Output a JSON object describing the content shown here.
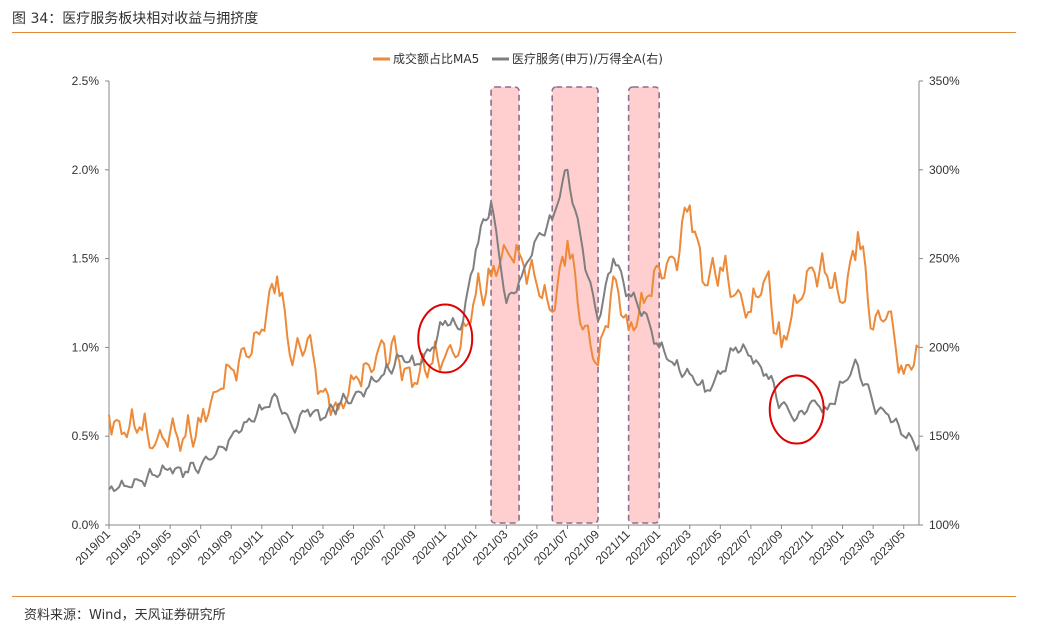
{
  "figure": {
    "title": "图 34：医疗服务板块相对收益与拥挤度",
    "source": "资料来源：Wind，天风证券研究所"
  },
  "colors": {
    "orange": "#ED8A3A",
    "gray": "#7F7F7F",
    "axis": "#888888",
    "rule": "#E08A3C",
    "highlight_fill": "#FFC7C7",
    "highlight_border": "#8C6E8E",
    "circle": "#E00000"
  },
  "chart_data": {
    "type": "line",
    "legend_position": "top-center",
    "grid": false,
    "x_ticks": [
      "2019/01",
      "2019/03",
      "2019/05",
      "2019/07",
      "2019/09",
      "2019/11",
      "2020/01",
      "2020/03",
      "2020/05",
      "2020/07",
      "2020/09",
      "2020/11",
      "2021/01",
      "2021/03",
      "2021/05",
      "2021/07",
      "2021/09",
      "2021/11",
      "2022/01",
      "2022/03",
      "2022/05",
      "2022/07",
      "2022/09",
      "2022/11",
      "2023/01",
      "2023/03",
      "2023/05"
    ],
    "x_range": [
      "2019/01",
      "2023/06"
    ],
    "y_left": {
      "ticks": [
        "0.0%",
        "0.5%",
        "1.0%",
        "1.5%",
        "2.0%",
        "2.5%"
      ],
      "range": [
        0,
        2.5
      ],
      "unit": "%"
    },
    "y_right": {
      "ticks": [
        "100%",
        "150%",
        "200%",
        "250%",
        "300%",
        "350%"
      ],
      "range": [
        100,
        350
      ],
      "unit": "%"
    },
    "series": [
      {
        "name": "成交额占比MA5",
        "axis": "left",
        "color": "#ED8A3A",
        "points": [
          [
            "2019/01",
            0.62
          ],
          [
            "2019/02",
            0.52
          ],
          [
            "2019/03",
            0.55
          ],
          [
            "2019/04",
            0.45
          ],
          [
            "2019/05",
            0.52
          ],
          [
            "2019/06",
            0.5
          ],
          [
            "2019/07",
            0.58
          ],
          [
            "2019/08",
            0.75
          ],
          [
            "2019/09",
            0.88
          ],
          [
            "2019/10",
            0.95
          ],
          [
            "2019/11",
            1.1
          ],
          [
            "2019/12",
            1.4
          ],
          [
            "2020/01",
            0.9
          ],
          [
            "2020/02",
            1.05
          ],
          [
            "2020/03",
            0.75
          ],
          [
            "2020/04",
            0.65
          ],
          [
            "2020/05",
            0.82
          ],
          [
            "2020/06",
            0.9
          ],
          [
            "2020/07",
            1.02
          ],
          [
            "2020/08",
            0.92
          ],
          [
            "2020/09",
            0.8
          ],
          [
            "2020/10",
            0.9
          ],
          [
            "2020/11",
            0.95
          ],
          [
            "2020/12",
            1.0
          ],
          [
            "2021/01",
            1.3
          ],
          [
            "2021/02",
            1.4
          ],
          [
            "2021/03",
            1.55
          ],
          [
            "2021/04",
            1.5
          ],
          [
            "2021/05",
            1.35
          ],
          [
            "2021/06",
            1.2
          ],
          [
            "2021/07",
            1.6
          ],
          [
            "2021/08",
            1.1
          ],
          [
            "2021/09",
            0.9
          ],
          [
            "2021/10",
            1.4
          ],
          [
            "2021/11",
            1.1
          ],
          [
            "2021/12",
            1.25
          ],
          [
            "2022/01",
            1.45
          ],
          [
            "2022/02",
            1.5
          ],
          [
            "2022/03",
            1.8
          ],
          [
            "2022/04",
            1.35
          ],
          [
            "2022/05",
            1.45
          ],
          [
            "2022/06",
            1.3
          ],
          [
            "2022/07",
            1.2
          ],
          [
            "2022/08",
            1.4
          ],
          [
            "2022/09",
            1.0
          ],
          [
            "2022/10",
            1.25
          ],
          [
            "2022/11",
            1.45
          ],
          [
            "2022/12",
            1.4
          ],
          [
            "2023/01",
            1.25
          ],
          [
            "2023/02",
            1.65
          ],
          [
            "2023/03",
            1.1
          ],
          [
            "2023/04",
            1.2
          ],
          [
            "2023/05",
            0.85
          ],
          [
            "2023/06",
            1.0
          ]
        ]
      },
      {
        "name": "医疗服务(申万)/万得全A(右)",
        "axis": "right",
        "color": "#7F7F7F",
        "points": [
          [
            "2019/01",
            120
          ],
          [
            "2019/02",
            122
          ],
          [
            "2019/03",
            125
          ],
          [
            "2019/04",
            128
          ],
          [
            "2019/05",
            132
          ],
          [
            "2019/06",
            130
          ],
          [
            "2019/07",
            133
          ],
          [
            "2019/08",
            140
          ],
          [
            "2019/09",
            150
          ],
          [
            "2019/10",
            158
          ],
          [
            "2019/11",
            165
          ],
          [
            "2019/12",
            172
          ],
          [
            "2020/01",
            155
          ],
          [
            "2020/02",
            165
          ],
          [
            "2020/03",
            160
          ],
          [
            "2020/04",
            168
          ],
          [
            "2020/05",
            172
          ],
          [
            "2020/06",
            178
          ],
          [
            "2020/07",
            185
          ],
          [
            "2020/08",
            195
          ],
          [
            "2020/09",
            190
          ],
          [
            "2020/10",
            198
          ],
          [
            "2020/11",
            215
          ],
          [
            "2020/12",
            210
          ],
          [
            "2021/01",
            255
          ],
          [
            "2021/02",
            282
          ],
          [
            "2021/03",
            225
          ],
          [
            "2021/04",
            240
          ],
          [
            "2021/05",
            262
          ],
          [
            "2021/06",
            272
          ],
          [
            "2021/07",
            300
          ],
          [
            "2021/08",
            255
          ],
          [
            "2021/09",
            215
          ],
          [
            "2021/10",
            250
          ],
          [
            "2021/11",
            230
          ],
          [
            "2021/12",
            220
          ],
          [
            "2022/01",
            200
          ],
          [
            "2022/02",
            190
          ],
          [
            "2022/03",
            185
          ],
          [
            "2022/04",
            175
          ],
          [
            "2022/05",
            185
          ],
          [
            "2022/06",
            200
          ],
          [
            "2022/07",
            195
          ],
          [
            "2022/08",
            185
          ],
          [
            "2022/09",
            168
          ],
          [
            "2022/10",
            160
          ],
          [
            "2022/11",
            170
          ],
          [
            "2022/12",
            165
          ],
          [
            "2023/01",
            180
          ],
          [
            "2023/02",
            190
          ],
          [
            "2023/03",
            168
          ],
          [
            "2023/04",
            162
          ],
          [
            "2023/05",
            150
          ],
          [
            "2023/06",
            145
          ]
        ]
      }
    ],
    "highlights": [
      {
        "from": "2021/02",
        "to": "2021/03"
      },
      {
        "from": "2021/06",
        "to": "2021/09"
      },
      {
        "from": "2021/11",
        "to": "2022/01"
      }
    ],
    "annotations": [
      {
        "shape": "circle",
        "at": "2020/11",
        "axis": "right",
        "y": 205
      },
      {
        "shape": "circle",
        "at": "2022/10",
        "axis": "right",
        "y": 165
      }
    ]
  }
}
